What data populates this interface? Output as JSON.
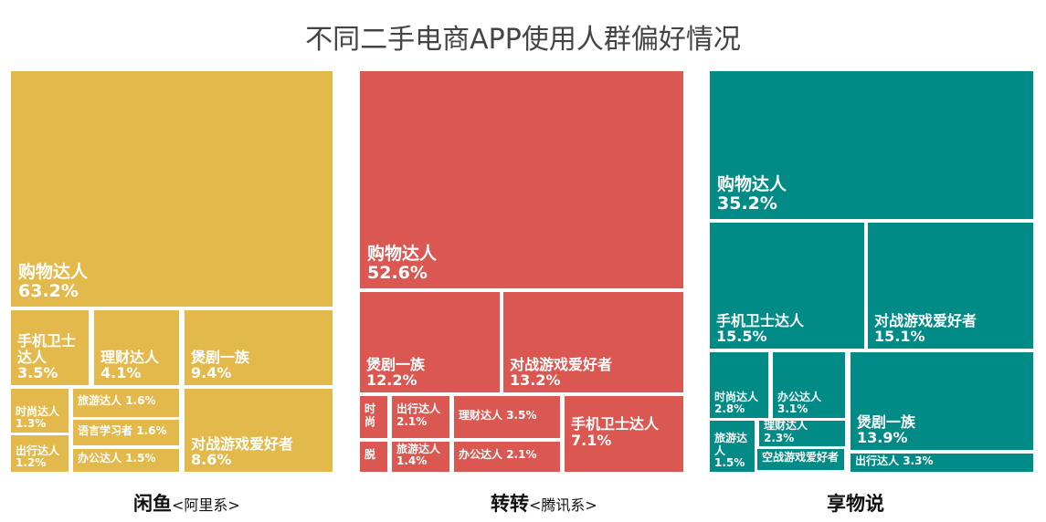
{
  "title": "不同二手电商APP使用人群偏好情况",
  "chart_data": {
    "type": "treemap",
    "title": "不同二手电商APP使用人群偏好情况",
    "colors": {
      "闲鱼": "#E3B94C",
      "转转": "#DB5751",
      "享物说": "#008B86"
    },
    "panels": [
      {
        "name": "闲鱼",
        "tag": "<阿里系>",
        "items": [
          {
            "label": "购物达人",
            "value": "63.2%"
          },
          {
            "label": "手机卫士达人",
            "value": "3.5%"
          },
          {
            "label": "理财达人",
            "value": "4.1%"
          },
          {
            "label": "煲剧一族",
            "value": "9.4%"
          },
          {
            "label": "时尚达人",
            "value": "1.3%"
          },
          {
            "label": "出行达人",
            "value": "1.2%"
          },
          {
            "label": "旅游达人",
            "value": "1.6%"
          },
          {
            "label": "语言学习者",
            "value": "1.6%"
          },
          {
            "label": "办公达人",
            "value": "1.5%"
          },
          {
            "label": "对战游戏爱好者",
            "value": "8.6%"
          }
        ]
      },
      {
        "name": "转转",
        "tag": "<腾讯系>",
        "items": [
          {
            "label": "购物达人",
            "value": "52.6%"
          },
          {
            "label": "煲剧一族",
            "value": "12.2%"
          },
          {
            "label": "对战游戏爱好者",
            "value": "13.2%"
          },
          {
            "label": "时尚",
            "value": ""
          },
          {
            "label": "脱",
            "value": ""
          },
          {
            "label": "出行达人",
            "value": "2.1%"
          },
          {
            "label": "旅游达人",
            "value": "1.4%"
          },
          {
            "label": "理财达人",
            "value": "3.5%"
          },
          {
            "label": "办公达人",
            "value": "2.1%"
          },
          {
            "label": "手机卫士达人",
            "value": "7.1%"
          }
        ]
      },
      {
        "name": "享物说",
        "tag": "",
        "items": [
          {
            "label": "购物达人",
            "value": "35.2%"
          },
          {
            "label": "手机卫士达人",
            "value": "15.5%"
          },
          {
            "label": "对战游戏爱好者",
            "value": "15.1%"
          },
          {
            "label": "时尚达人",
            "value": "2.8%"
          },
          {
            "label": "办公达人",
            "value": "3.1%"
          },
          {
            "label": "旅游达人",
            "value": "1.5%"
          },
          {
            "label": "理财达人",
            "value": "2.3%"
          },
          {
            "label": "空战游戏爱好者",
            "value": ""
          },
          {
            "label": "煲剧一族",
            "value": "13.9%"
          },
          {
            "label": "出行达人",
            "value": "3.3%"
          }
        ]
      }
    ]
  }
}
